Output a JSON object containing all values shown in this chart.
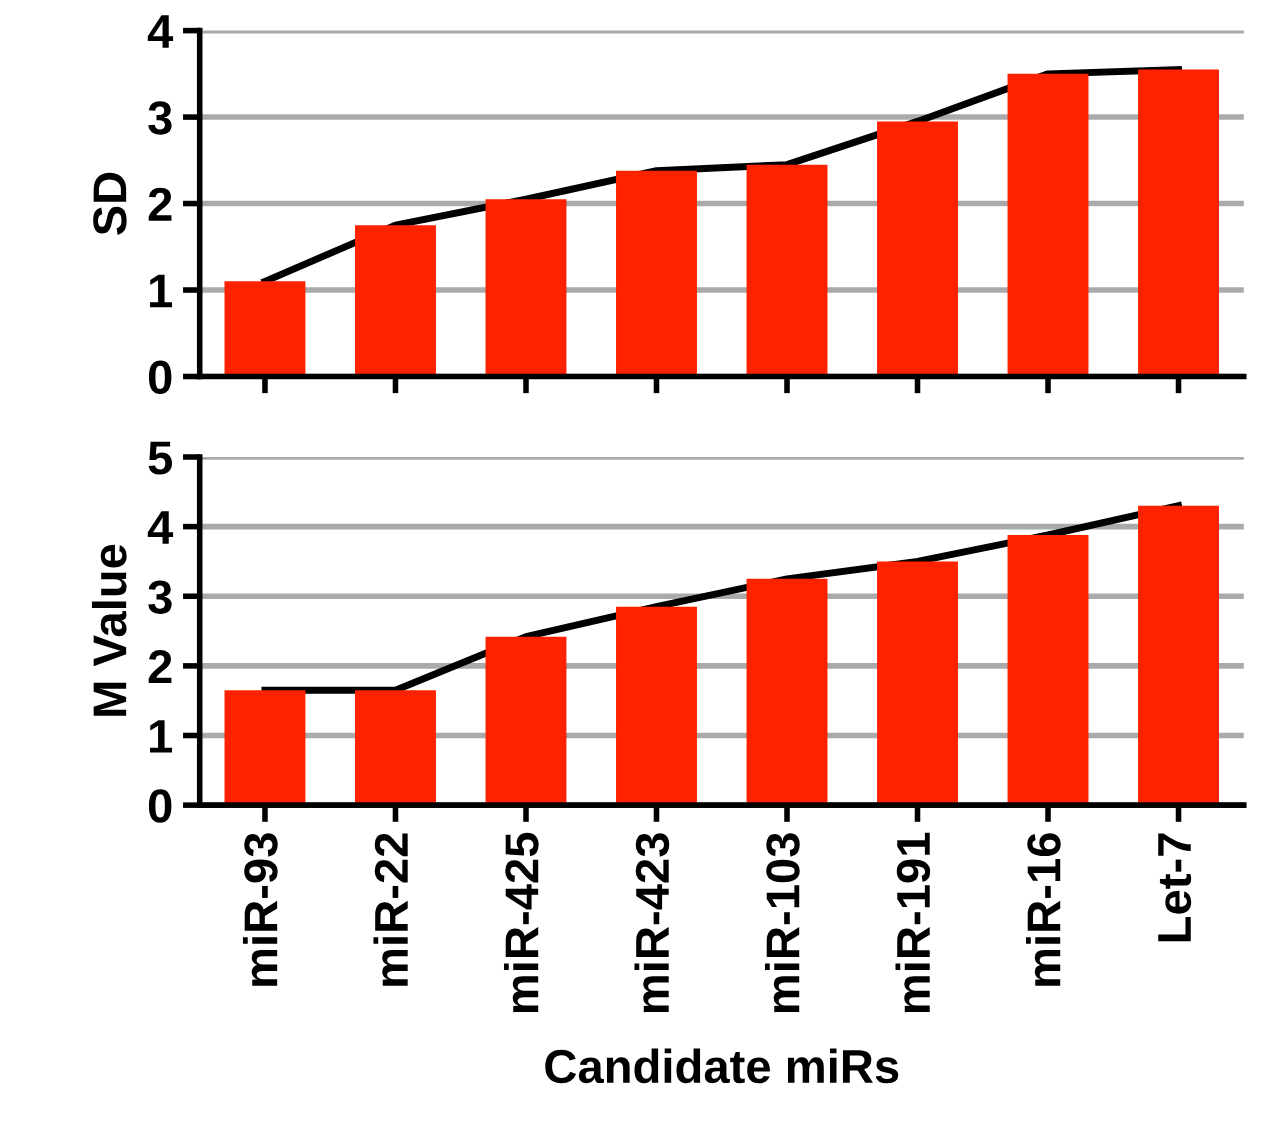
{
  "chart_data": [
    {
      "type": "bar",
      "ylabel": "SD",
      "categories": [
        null,
        null,
        null,
        null,
        null,
        null,
        null,
        null
      ],
      "series": [
        {
          "color": "#ff2200",
          "values": [
            1.1,
            1.75,
            2.05,
            2.38,
            2.45,
            2.95,
            3.5,
            3.55
          ]
        },
        {
          "type": "line",
          "color": "#000000",
          "values": [
            1.1,
            1.75,
            2.05,
            2.38,
            2.45,
            2.95,
            3.5,
            3.55
          ]
        }
      ],
      "ylim": [
        0,
        4
      ],
      "yticks": [
        0,
        1,
        2,
        3,
        4
      ],
      "grid": "y",
      "tick_labels": "y"
    },
    {
      "type": "bar",
      "ylabel": "M Value",
      "xlabel": "Candidate miRs",
      "categories": [
        "miR-93",
        "miR-22",
        "miR-425",
        "miR-423",
        "miR-103",
        "miR-191",
        "miR-16",
        "Let-7"
      ],
      "series": [
        {
          "color": "#ff2200",
          "values": [
            1.65,
            1.65,
            2.42,
            2.85,
            3.25,
            3.5,
            3.88,
            4.3
          ]
        },
        {
          "type": "line",
          "color": "#000000",
          "values": [
            1.65,
            1.65,
            2.42,
            2.85,
            3.25,
            3.5,
            3.88,
            4.3
          ]
        }
      ],
      "ylim": [
        0,
        5
      ],
      "yticks": [
        0,
        1,
        2,
        3,
        4,
        5
      ],
      "grid": "y"
    }
  ]
}
